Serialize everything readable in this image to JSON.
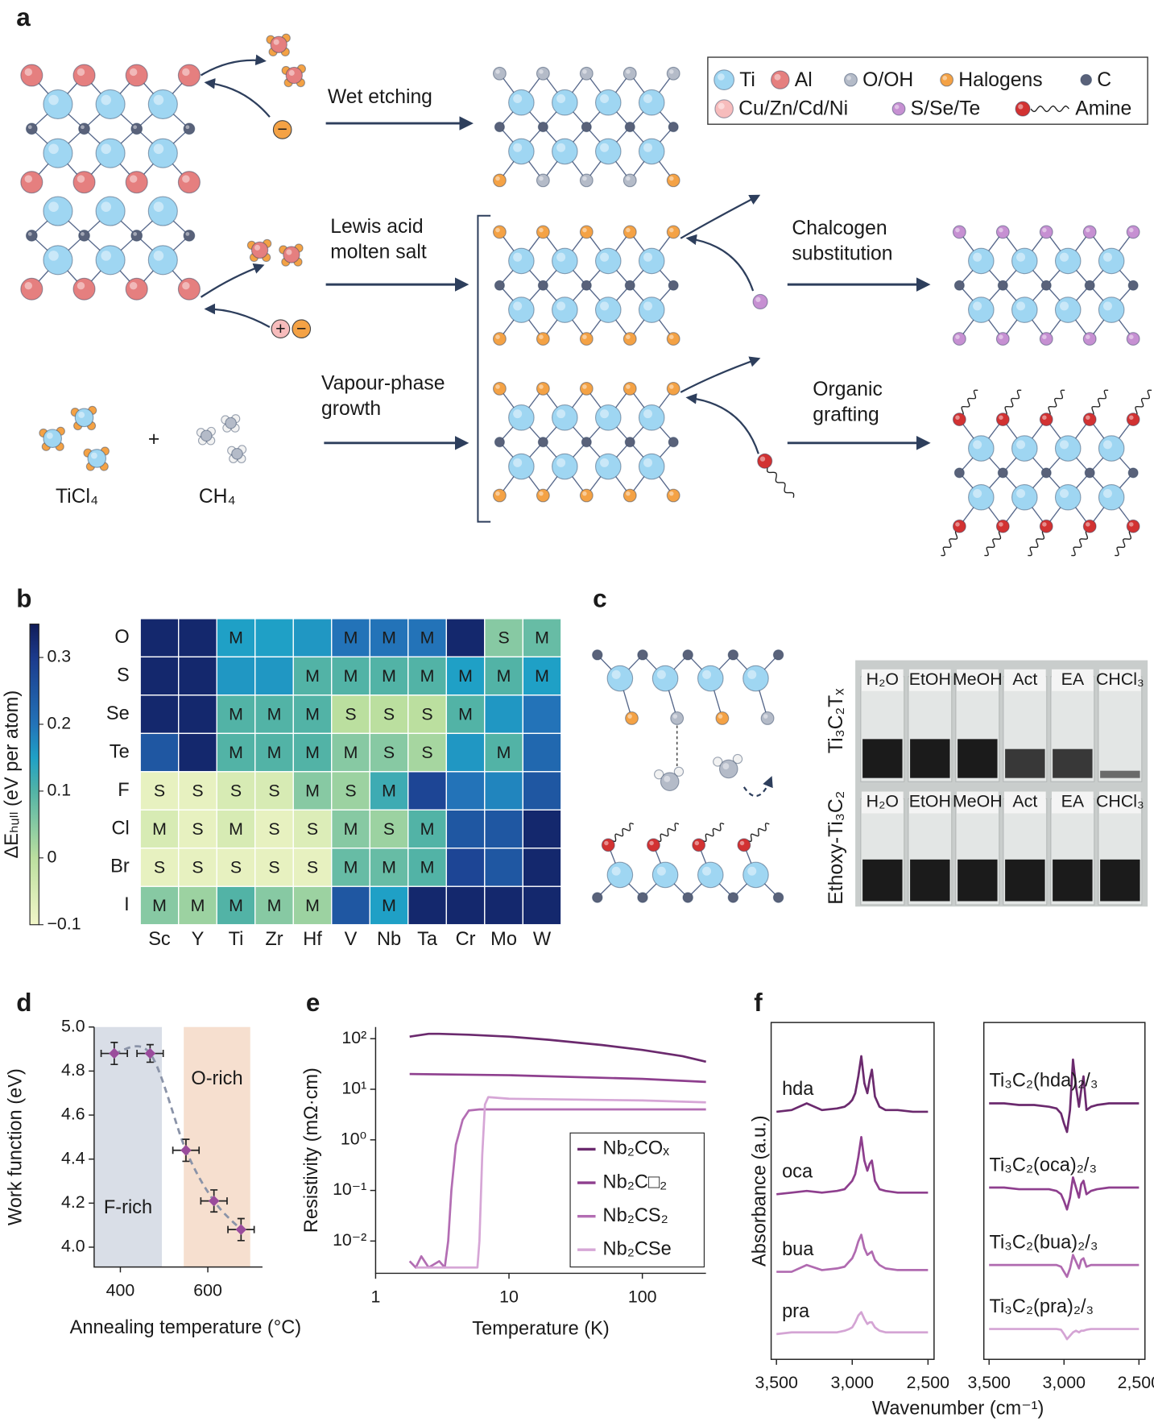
{
  "panel_labels": [
    "a",
    "b",
    "c",
    "d",
    "e",
    "f"
  ],
  "diagram_a": {
    "legend": [
      {
        "name": "Ti",
        "color": "#9fd6f2"
      },
      {
        "name": "Al",
        "color": "#e57f7f"
      },
      {
        "name": "O/OH",
        "color": "#b4bbc8"
      },
      {
        "name": "Halogens",
        "color": "#f4a245"
      },
      {
        "name": "C",
        "color": "#59627a"
      },
      {
        "name": "Cu/Zn/Cd/Ni",
        "color": "#f7bcbc"
      },
      {
        "name": "S/Se/Te",
        "color": "#c690d2"
      },
      {
        "name": "Amine",
        "color": "#d23232"
      }
    ],
    "steps": [
      [
        "Wet etching"
      ],
      [
        "Lewis acid",
        "molten salt"
      ],
      [
        "Vapour-phase",
        "growth"
      ],
      [
        "Chalcogen",
        "substitution"
      ],
      [
        "Organic",
        "grafting"
      ]
    ],
    "ions": [
      "−",
      "+",
      "−"
    ],
    "precursors": [
      "TiCl₄",
      "CH₄"
    ],
    "plus": "+"
  },
  "panel_c": {
    "samples": [
      "Ti₃C₂Tₓ",
      "Ethoxy-Ti₃C₂"
    ],
    "solvents": [
      "H₂O",
      "EtOH",
      "MeOH",
      "Act",
      "EA",
      "CHCl₃"
    ]
  },
  "chart_data": [
    {
      "type": "heatmap",
      "rows": [
        "O",
        "S",
        "Se",
        "Te",
        "F",
        "Cl",
        "Br",
        "I"
      ],
      "columns": [
        "Sc",
        "Y",
        "Ti",
        "Zr",
        "Hf",
        "V",
        "Nb",
        "Ta",
        "Cr",
        "Mo",
        "W"
      ],
      "values": [
        [
          0.33,
          0.33,
          0.15,
          0.15,
          0.16,
          0.2,
          0.2,
          0.2,
          0.33,
          0.05,
          0.08
        ],
        [
          0.33,
          0.33,
          0.16,
          0.16,
          0.1,
          0.1,
          0.1,
          0.1,
          0.15,
          0.1,
          0.15
        ],
        [
          0.33,
          0.33,
          0.1,
          0.1,
          0.1,
          0.0,
          0.0,
          0.0,
          0.1,
          0.16,
          0.2
        ],
        [
          0.25,
          0.33,
          0.1,
          0.1,
          0.1,
          0.05,
          0.05,
          0.02,
          0.16,
          0.1,
          0.22
        ],
        [
          -0.08,
          -0.08,
          -0.05,
          -0.05,
          0.05,
          0.03,
          0.12,
          0.28,
          0.2,
          0.18,
          0.25
        ],
        [
          -0.05,
          -0.08,
          -0.05,
          -0.08,
          -0.06,
          0.05,
          0.03,
          0.1,
          0.25,
          0.25,
          0.33
        ],
        [
          -0.08,
          -0.08,
          -0.08,
          -0.08,
          -0.08,
          0.08,
          0.08,
          0.1,
          0.28,
          0.25,
          0.33
        ],
        [
          0.05,
          0.03,
          0.1,
          0.05,
          0.03,
          0.25,
          0.15,
          0.33,
          0.33,
          0.33,
          0.33
        ]
      ],
      "cell_labels": [
        [
          null,
          null,
          "M",
          null,
          null,
          "M",
          "M",
          "M",
          null,
          "S",
          "M"
        ],
        [
          null,
          null,
          null,
          null,
          "M",
          "M",
          "M",
          "M",
          "M",
          "M",
          "M"
        ],
        [
          null,
          null,
          "M",
          "M",
          "M",
          "S",
          "S",
          "S",
          "M",
          null,
          null
        ],
        [
          null,
          null,
          "M",
          "M",
          "M",
          "M",
          "S",
          "S",
          null,
          "M",
          null
        ],
        [
          "S",
          "S",
          "S",
          "S",
          "M",
          "S",
          "M",
          null,
          null,
          null,
          null
        ],
        [
          "M",
          "S",
          "M",
          "S",
          "S",
          "M",
          "S",
          "M",
          null,
          null,
          null
        ],
        [
          "S",
          "S",
          "S",
          "S",
          "S",
          "M",
          "M",
          "M",
          null,
          null,
          null
        ],
        [
          "M",
          "M",
          "M",
          "M",
          "M",
          null,
          "M",
          null,
          null,
          null,
          null
        ]
      ],
      "colorbar_label": "ΔEₕᵤₗₗ (eV per atom)",
      "clim": [
        -0.1,
        0.35
      ],
      "cticks": [
        {
          "value": -0.1,
          "label": "−0.1"
        },
        0,
        0.1,
        0.2,
        0.3
      ],
      "colorscale": [
        [
          -0.1,
          "#f2f6c8"
        ],
        [
          0,
          "#bbdf9f"
        ],
        [
          0.1,
          "#52b3a6"
        ],
        [
          0.15,
          "#1fa0c6"
        ],
        [
          0.2,
          "#2373b8"
        ],
        [
          0.3,
          "#1b3a8c"
        ],
        [
          0.35,
          "#101c58"
        ]
      ]
    },
    {
      "type": "scatter",
      "xlabel": "Annealing temperature (°C)",
      "ylabel": "Work function (eV)",
      "x": [
        386,
        468,
        550,
        614,
        676
      ],
      "values": [
        4.88,
        4.88,
        4.44,
        4.21,
        4.08
      ],
      "xerr": [
        30,
        30,
        30,
        30,
        30
      ],
      "yerr": [
        0.05,
        0.04,
        0.05,
        0.05,
        0.05
      ],
      "color": "#9a4c9c",
      "regions": [
        {
          "label": "F-rich",
          "range": [
            340,
            495
          ],
          "color": "#d9dee7"
        },
        {
          "label": "O-rich",
          "range": [
            545,
            697
          ],
          "color": "#f6dfcf"
        }
      ],
      "xlim": [
        340,
        725
      ],
      "ylim": [
        3.91,
        5.0
      ],
      "xticks": [
        400,
        600
      ],
      "yticks": [
        {
          "value": 4,
          "label": "4.0"
        },
        4.2,
        4.4,
        4.6,
        4.8,
        {
          "value": 5,
          "label": "5.0"
        }
      ]
    },
    {
      "type": "line",
      "xlabel": "Temperature (K)",
      "ylabel": "Resistivity (mΩ·cm)",
      "xscale": "log",
      "yscale": "log",
      "legend": "lower right",
      "series": [
        {
          "name": "Nb₂COₓ",
          "color": "#6b2a6e",
          "x": [
            1.8,
            2.5,
            3,
            5,
            10,
            20,
            50,
            100,
            200,
            300
          ],
          "values": [
            110,
            125,
            125,
            120,
            110,
            95,
            75,
            60,
            45,
            35
          ]
        },
        {
          "name": "Nb₂C□₂",
          "color": "#8e3f8e",
          "x": [
            1.8,
            10,
            100,
            300
          ],
          "values": [
            20,
            19,
            16,
            14
          ]
        },
        {
          "name": "Nb₂CS₂",
          "color": "#b36db3",
          "x": [
            1.8,
            2,
            2.2,
            2.5,
            3,
            3.3,
            3.5,
            3.7,
            4,
            4.5,
            5,
            6,
            10,
            100,
            300
          ],
          "values": [
            0.004,
            0.003,
            0.005,
            0.003,
            0.004,
            0.003,
            0.01,
            0.1,
            0.8,
            2.5,
            3.8,
            4,
            4,
            4,
            4
          ]
        },
        {
          "name": "Nb₂CSe",
          "color": "#d6a6d6",
          "x": [
            2,
            3,
            4,
            5,
            5.8,
            6,
            6.3,
            6.6,
            7,
            10,
            100,
            300
          ],
          "values": [
            0.003,
            0.003,
            0.003,
            0.003,
            0.003,
            0.01,
            0.5,
            5,
            7,
            6.5,
            6,
            5.5
          ]
        }
      ],
      "xlim": [
        1,
        300
      ],
      "ylim": [
        0.0023,
        170
      ],
      "xticks": [
        1,
        10,
        100
      ],
      "yticks": [
        {
          "value": 0.01,
          "label": "10⁻²"
        },
        {
          "value": 0.1,
          "label": "10⁻¹"
        },
        {
          "value": 1,
          "label": "10⁰"
        },
        {
          "value": 10,
          "label": "10¹"
        },
        {
          "value": 100,
          "label": "10²"
        }
      ]
    },
    {
      "type": "line",
      "xlabel": "Wavenumber (cm⁻¹)",
      "ylabel": "Absorbance (a.u.)",
      "legend": "inline",
      "x": [
        3500,
        3400,
        3300,
        3200,
        3100,
        3050,
        3020,
        3000,
        2980,
        2960,
        2940,
        2920,
        2900,
        2885,
        2870,
        2850,
        2820,
        2780,
        2700,
        2600,
        2500
      ],
      "series": [
        {
          "name": "hda",
          "color": "#6b2a6e",
          "values": [
            7.35,
            7.4,
            7.6,
            7.4,
            7.45,
            7.5,
            7.6,
            7.7,
            7.9,
            8.4,
            9.0,
            8.2,
            7.9,
            8.3,
            8.6,
            7.8,
            7.5,
            7.4,
            7.4,
            7.35,
            7.35
          ]
        },
        {
          "name": "oca",
          "color": "#8e3f8e",
          "values": [
            4.9,
            4.95,
            5.0,
            4.95,
            5.0,
            5.05,
            5.2,
            5.3,
            5.5,
            6.0,
            6.6,
            5.9,
            5.6,
            5.8,
            5.9,
            5.3,
            5.05,
            5.0,
            4.95,
            4.95,
            4.95
          ]
        },
        {
          "name": "bua",
          "color": "#b06ab0",
          "values": [
            2.6,
            2.6,
            2.8,
            2.65,
            2.7,
            2.75,
            2.9,
            3.0,
            3.2,
            3.5,
            3.7,
            3.3,
            3.1,
            3.15,
            3.2,
            2.95,
            2.8,
            2.7,
            2.65,
            2.65,
            2.65
          ]
        },
        {
          "name": "pra",
          "color": "#d4a4d4",
          "values": [
            0.75,
            0.8,
            0.8,
            0.8,
            0.8,
            0.85,
            0.9,
            0.95,
            1.1,
            1.3,
            1.4,
            1.2,
            1.05,
            1.1,
            1.1,
            0.95,
            0.85,
            0.8,
            0.8,
            0.8,
            0.8
          ]
        }
      ],
      "xlim": [
        3535,
        2460
      ],
      "ylim": [
        0,
        10
      ],
      "xticks": [
        {
          "value": 3500,
          "label": "3,500"
        },
        {
          "value": 3000,
          "label": "3,000"
        },
        {
          "value": 2500,
          "label": "2,500"
        }
      ]
    },
    {
      "type": "line",
      "legend": "inline",
      "x": [
        3500,
        3400,
        3300,
        3200,
        3100,
        3050,
        3020,
        3000,
        2980,
        2960,
        2940,
        2920,
        2900,
        2885,
        2870,
        2850,
        2820,
        2780,
        2700,
        2600,
        2500
      ],
      "series": [
        {
          "name": "Ti₃C₂(hda)₂/₃",
          "color": "#6b2a6e",
          "values": [
            7.6,
            7.6,
            7.55,
            7.55,
            7.5,
            7.45,
            7.3,
            7.0,
            6.75,
            7.4,
            8.9,
            8.1,
            7.5,
            8.0,
            8.4,
            7.4,
            7.5,
            7.55,
            7.6,
            7.6,
            7.6
          ]
        },
        {
          "name": "Ti₃C₂(oca)₂/₃",
          "color": "#8e3f8e",
          "values": [
            5.1,
            5.1,
            5.05,
            5.05,
            5.05,
            5.0,
            4.9,
            4.7,
            4.45,
            4.8,
            5.4,
            5.1,
            4.8,
            5.2,
            5.3,
            4.9,
            5.0,
            5.05,
            5.1,
            5.1,
            5.1
          ]
        },
        {
          "name": "Ti₃C₂(bua)₂/₃",
          "color": "#b06ab0",
          "values": [
            2.8,
            2.8,
            2.8,
            2.8,
            2.8,
            2.8,
            2.75,
            2.6,
            2.45,
            2.7,
            3.1,
            2.9,
            2.7,
            2.95,
            3.0,
            2.75,
            2.8,
            2.8,
            2.8,
            2.8,
            2.8
          ]
        },
        {
          "name": "Ti₃C₂(pra)₂/₃",
          "color": "#d4a4d4",
          "values": [
            0.9,
            0.9,
            0.9,
            0.9,
            0.9,
            0.9,
            0.88,
            0.75,
            0.6,
            0.7,
            0.8,
            0.85,
            0.8,
            0.85,
            0.85,
            0.88,
            0.9,
            0.9,
            0.9,
            0.9,
            0.9
          ]
        }
      ],
      "xlim": [
        3535,
        2460
      ],
      "ylim": [
        0,
        10
      ],
      "xticks": [
        {
          "value": 3500,
          "label": "3,500"
        },
        {
          "value": 3000,
          "label": "3,000"
        },
        {
          "value": 2500,
          "label": "2,500"
        }
      ]
    }
  ]
}
